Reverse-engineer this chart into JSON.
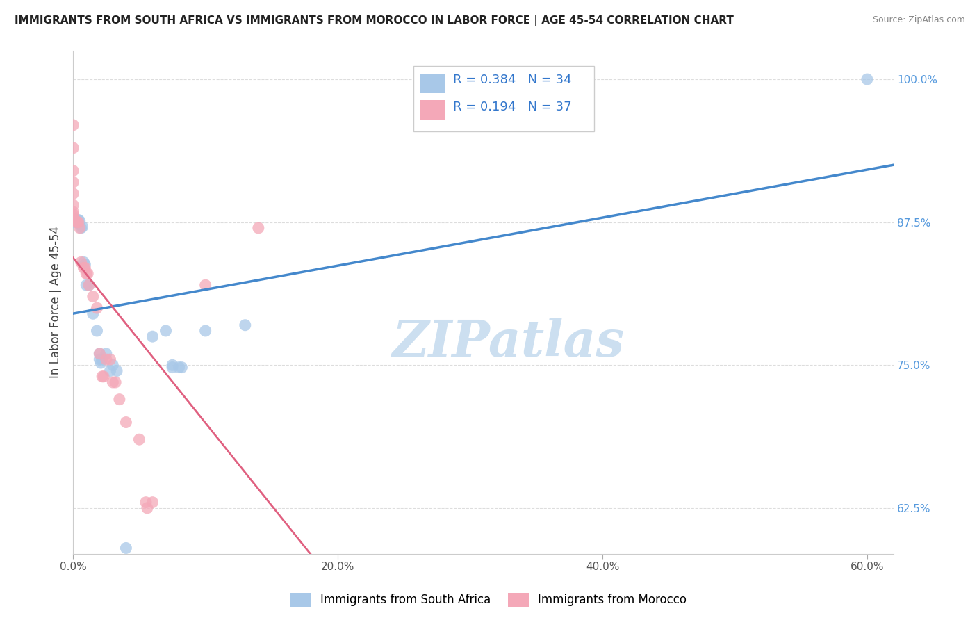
{
  "title": "IMMIGRANTS FROM SOUTH AFRICA VS IMMIGRANTS FROM MOROCCO IN LABOR FORCE | AGE 45-54 CORRELATION CHART",
  "source": "Source: ZipAtlas.com",
  "ylabel": "In Labor Force | Age 45-54",
  "xlim": [
    0.0,
    0.62
  ],
  "ylim": [
    0.585,
    1.025
  ],
  "south_africa_R": 0.384,
  "south_africa_N": 34,
  "morocco_R": 0.194,
  "morocco_N": 37,
  "south_africa_color": "#a8c8e8",
  "morocco_color": "#f4a8b8",
  "south_africa_line_color": "#4488cc",
  "morocco_line_color": "#e06080",
  "south_africa_scatter": [
    [
      0.0,
      0.875
    ],
    [
      0.0,
      0.876
    ],
    [
      0.0,
      0.877
    ],
    [
      0.0,
      0.878
    ],
    [
      0.002,
      0.876
    ],
    [
      0.003,
      0.875
    ],
    [
      0.004,
      0.877
    ],
    [
      0.005,
      0.876
    ],
    [
      0.006,
      0.87
    ],
    [
      0.007,
      0.871
    ],
    [
      0.008,
      0.84
    ],
    [
      0.009,
      0.838
    ],
    [
      0.01,
      0.82
    ],
    [
      0.012,
      0.82
    ],
    [
      0.015,
      0.795
    ],
    [
      0.018,
      0.78
    ],
    [
      0.02,
      0.76
    ],
    [
      0.02,
      0.755
    ],
    [
      0.021,
      0.752
    ],
    [
      0.022,
      0.755
    ],
    [
      0.025,
      0.76
    ],
    [
      0.028,
      0.745
    ],
    [
      0.03,
      0.75
    ],
    [
      0.033,
      0.745
    ],
    [
      0.04,
      0.59
    ],
    [
      0.06,
      0.775
    ],
    [
      0.07,
      0.78
    ],
    [
      0.075,
      0.75
    ],
    [
      0.075,
      0.748
    ],
    [
      0.08,
      0.748
    ],
    [
      0.082,
      0.748
    ],
    [
      0.1,
      0.78
    ],
    [
      0.13,
      0.785
    ],
    [
      0.6,
      1.0
    ]
  ],
  "morocco_scatter": [
    [
      0.0,
      0.878
    ],
    [
      0.0,
      0.88
    ],
    [
      0.0,
      0.882
    ],
    [
      0.0,
      0.884
    ],
    [
      0.0,
      0.89
    ],
    [
      0.0,
      0.9
    ],
    [
      0.0,
      0.91
    ],
    [
      0.0,
      0.92
    ],
    [
      0.0,
      0.94
    ],
    [
      0.0,
      0.96
    ],
    [
      0.002,
      0.876
    ],
    [
      0.003,
      0.875
    ],
    [
      0.004,
      0.875
    ],
    [
      0.005,
      0.87
    ],
    [
      0.006,
      0.84
    ],
    [
      0.008,
      0.835
    ],
    [
      0.009,
      0.835
    ],
    [
      0.01,
      0.83
    ],
    [
      0.011,
      0.83
    ],
    [
      0.012,
      0.82
    ],
    [
      0.015,
      0.81
    ],
    [
      0.018,
      0.8
    ],
    [
      0.02,
      0.76
    ],
    [
      0.022,
      0.74
    ],
    [
      0.023,
      0.74
    ],
    [
      0.025,
      0.755
    ],
    [
      0.028,
      0.755
    ],
    [
      0.03,
      0.735
    ],
    [
      0.032,
      0.735
    ],
    [
      0.035,
      0.72
    ],
    [
      0.04,
      0.7
    ],
    [
      0.05,
      0.685
    ],
    [
      0.055,
      0.63
    ],
    [
      0.056,
      0.625
    ],
    [
      0.06,
      0.63
    ],
    [
      0.1,
      0.82
    ],
    [
      0.14,
      0.87
    ]
  ],
  "watermark_text": "ZIPatlas",
  "watermark_color": "#ccdff0",
  "background_color": "#ffffff",
  "grid_color": "#dddddd"
}
